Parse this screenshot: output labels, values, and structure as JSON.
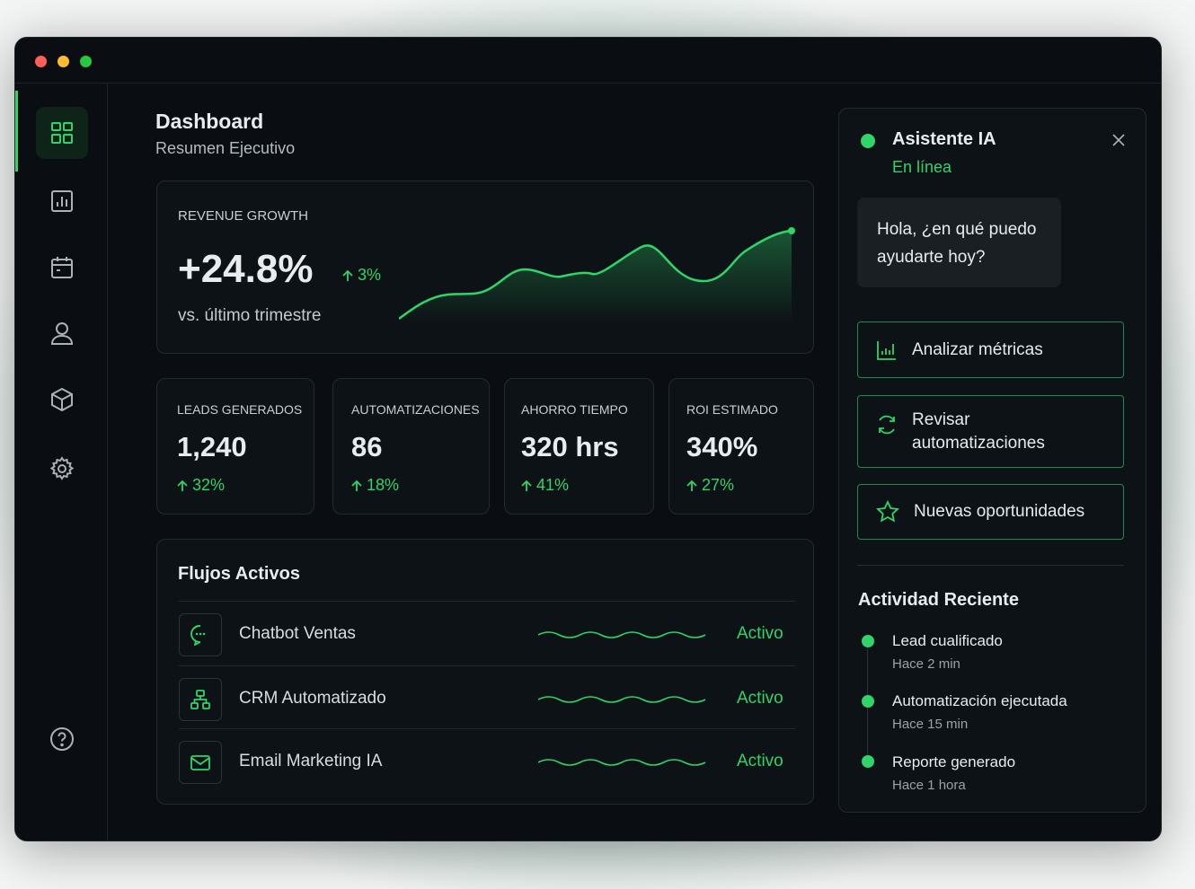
{
  "header": {
    "title": "Dashboard",
    "subtitle": "Resumen Ejecutivo"
  },
  "revenue": {
    "label": "REVENUE GROWTH",
    "value": "+24.8%",
    "change": "3%",
    "note": "vs. último trimestre"
  },
  "kpis": [
    {
      "label": "LEADS GENERADOS",
      "value": "1,240",
      "change": "32%"
    },
    {
      "label": "AUTOMATIZACIONES",
      "value": "86",
      "change": "18%"
    },
    {
      "label": "AHORRO TIEMPO",
      "value": "320 hrs",
      "change": "41%"
    },
    {
      "label": "ROI ESTIMADO",
      "value": "340%",
      "change": "27%"
    }
  ],
  "flows": {
    "title": "Flujos Activos",
    "items": [
      {
        "name": "Chatbot Ventas",
        "status": "Activo"
      },
      {
        "name": "CRM Automatizado",
        "status": "Activo"
      },
      {
        "name": "Email Marketing IA",
        "status": "Activo"
      }
    ]
  },
  "assistant": {
    "name": "Asistente IA",
    "status": "En línea",
    "message": "Hola, ¿en qué puedo ayudarte hoy?",
    "actions": [
      "Analizar métricas",
      "Revisar automatizaciones",
      "Nuevas oportunidades"
    ]
  },
  "activity": {
    "title": "Actividad Reciente",
    "items": [
      {
        "event": "Lead cualificado",
        "time": "Hace 2 min"
      },
      {
        "event": "Automatización ejecutada",
        "time": "Hace 15 min"
      },
      {
        "event": "Reporte generado",
        "time": "Hace 1 hora"
      }
    ]
  }
}
